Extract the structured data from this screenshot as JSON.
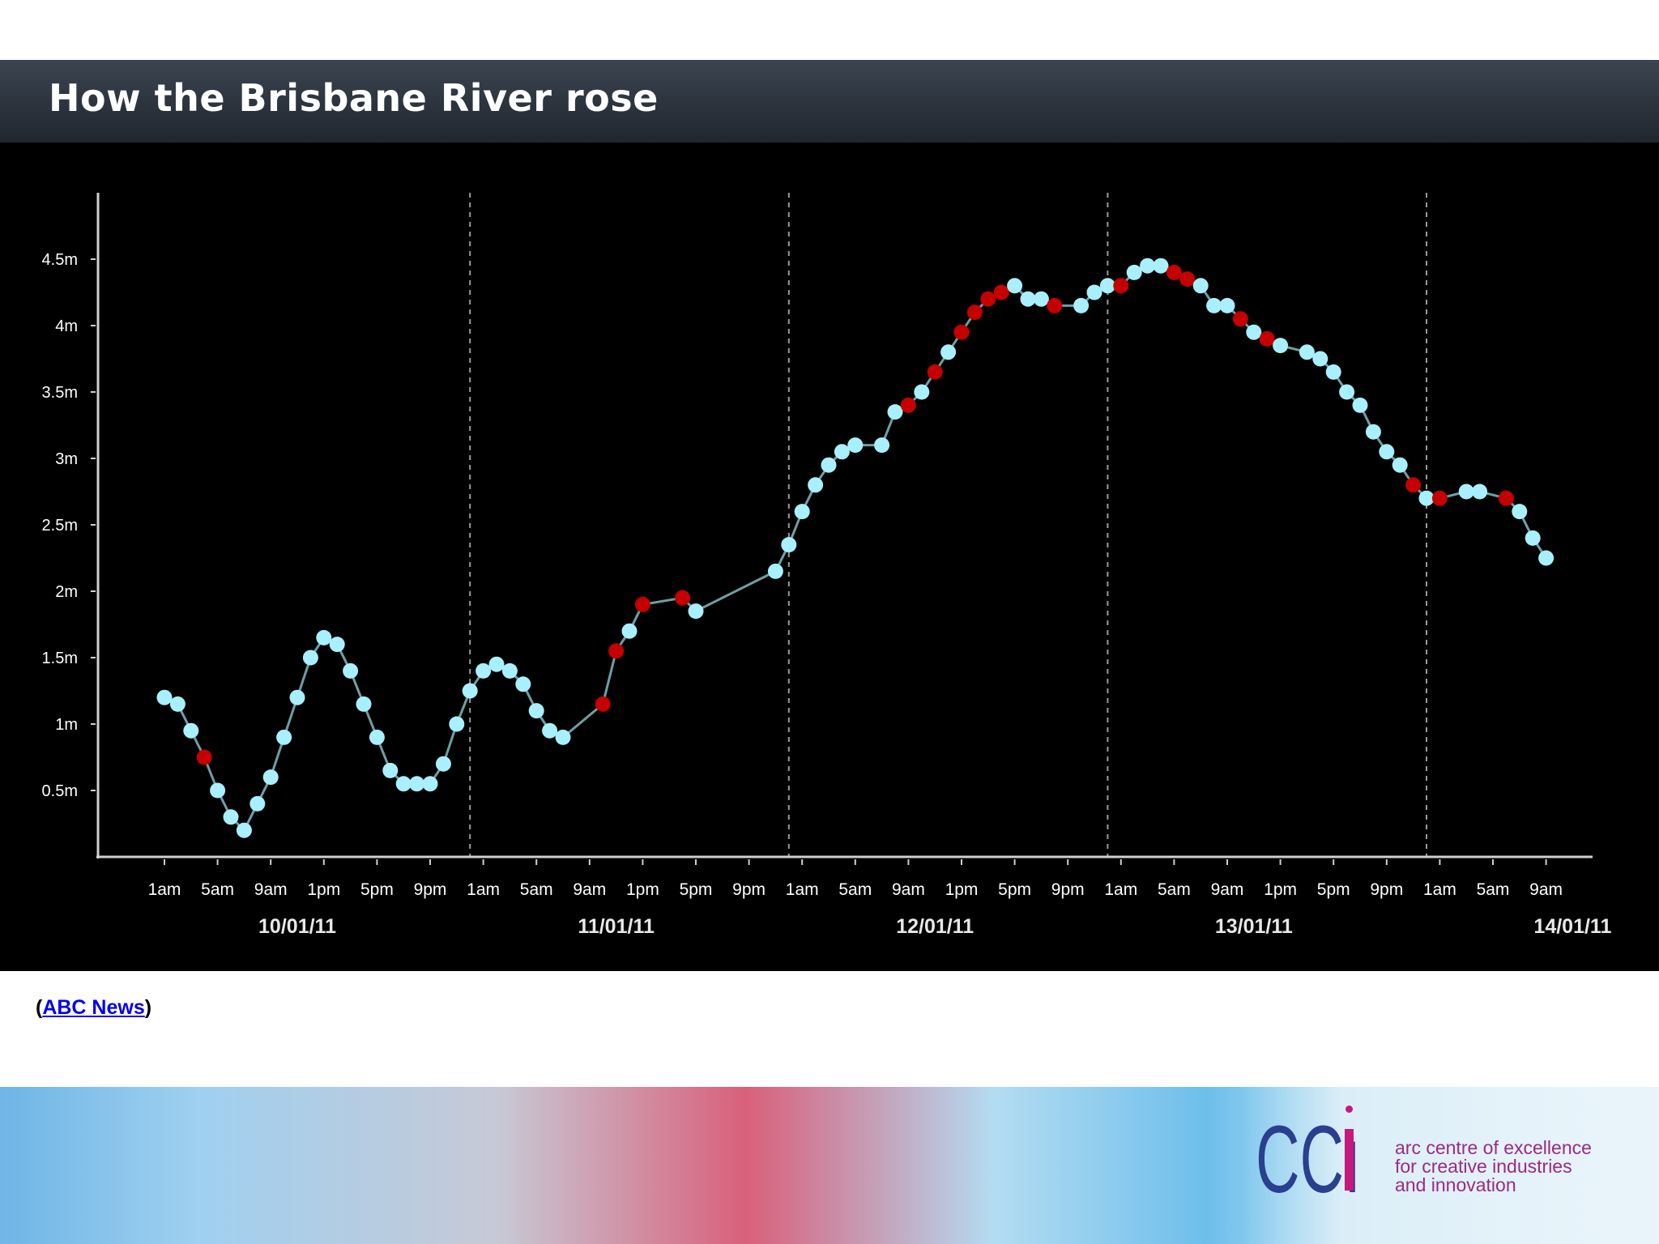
{
  "header": {
    "title": "How the Brisbane River rose"
  },
  "credit": {
    "open": "(",
    "link_text": "ABC News",
    "close": ")"
  },
  "branding": {
    "logo_text": "CCi",
    "tagline": [
      "arc centre of excellence",
      "for creative industries",
      "and innovation"
    ],
    "logo_color": "#2a3f8f",
    "accent_color": "#c8187d",
    "tagline_color": "#9b2a86"
  },
  "chart_data": {
    "type": "line",
    "title": "",
    "xlabel": "",
    "ylabel": "",
    "ylim": [
      0,
      5
    ],
    "xlim": [
      -2.5,
      105
    ],
    "y_ticks": [
      0.5,
      1,
      1.5,
      2,
      2.5,
      3,
      3.5,
      4,
      4.5
    ],
    "y_tick_labels": [
      "0.5m",
      "1m",
      "1.5m",
      "2m",
      "2.5m",
      "3m",
      "3.5m",
      "4m",
      "4.5m"
    ],
    "x_tick_hours": [
      0,
      4,
      8,
      12,
      16,
      20,
      24,
      28,
      32,
      36,
      40,
      44,
      48,
      52,
      56,
      60,
      64,
      68,
      72,
      76,
      80,
      84,
      88,
      92,
      96,
      100,
      104
    ],
    "x_tick_labels": [
      "1am",
      "5am",
      "9am",
      "1pm",
      "5pm",
      "9pm",
      "1am",
      "5am",
      "9am",
      "1pm",
      "5pm",
      "9pm",
      "1am",
      "5am",
      "9am",
      "1pm",
      "5pm",
      "9pm",
      "1am",
      "5am",
      "9am",
      "1pm",
      "5pm",
      "9pm",
      "1am",
      "5am",
      "9am"
    ],
    "dates": [
      {
        "label": "10/01/11",
        "hour": 10
      },
      {
        "label": "11/01/11",
        "hour": 34
      },
      {
        "label": "12/01/11",
        "hour": 58
      },
      {
        "label": "13/01/11",
        "hour": 82
      },
      {
        "label": "14/01/11",
        "hour": 106
      }
    ],
    "day_boundaries": [
      23,
      47,
      71,
      95
    ],
    "series": [
      {
        "points": [
          [
            0,
            1.2,
            0
          ],
          [
            1,
            1.15,
            0
          ],
          [
            2,
            0.95,
            0
          ],
          [
            3,
            0.75,
            1
          ],
          [
            4,
            0.5,
            0
          ],
          [
            5,
            0.3,
            0
          ],
          [
            6,
            0.2,
            0
          ],
          [
            7,
            0.4,
            0
          ],
          [
            8,
            0.6,
            0
          ],
          [
            9,
            0.9,
            0
          ],
          [
            10,
            1.2,
            0
          ],
          [
            11,
            1.5,
            0
          ],
          [
            12,
            1.65,
            0
          ],
          [
            13,
            1.6,
            0
          ],
          [
            14,
            1.4,
            0
          ],
          [
            15,
            1.15,
            0
          ],
          [
            16,
            0.9,
            0
          ],
          [
            17,
            0.65,
            0
          ],
          [
            18,
            0.55,
            0
          ],
          [
            19,
            0.55,
            0
          ],
          [
            20,
            0.55,
            0
          ],
          [
            21,
            0.7,
            0
          ],
          [
            22,
            1.0,
            0
          ],
          [
            23,
            1.25,
            0
          ],
          [
            24,
            1.4,
            0
          ],
          [
            25,
            1.45,
            0
          ],
          [
            26,
            1.4,
            0
          ],
          [
            27,
            1.3,
            0
          ],
          [
            28,
            1.1,
            0
          ],
          [
            29,
            0.95,
            0
          ],
          [
            30,
            0.9,
            0
          ],
          [
            33,
            1.15,
            1
          ],
          [
            34,
            1.55,
            1
          ],
          [
            35,
            1.7,
            0
          ],
          [
            36,
            1.9,
            1
          ],
          [
            39,
            1.95,
            1
          ],
          [
            40,
            1.85,
            0
          ],
          [
            46,
            2.15,
            0
          ],
          [
            47,
            2.35,
            0
          ],
          [
            48,
            2.6,
            0
          ],
          [
            49,
            2.8,
            0
          ],
          [
            50,
            2.95,
            0
          ],
          [
            51,
            3.05,
            0
          ],
          [
            52,
            3.1,
            0
          ],
          [
            54,
            3.1,
            0
          ],
          [
            55,
            3.35,
            0
          ],
          [
            56,
            3.4,
            1
          ],
          [
            57,
            3.5,
            0
          ],
          [
            58,
            3.65,
            1
          ],
          [
            59,
            3.8,
            0
          ],
          [
            60,
            3.95,
            1
          ],
          [
            61,
            4.1,
            1
          ],
          [
            62,
            4.2,
            1
          ],
          [
            63,
            4.25,
            1
          ],
          [
            64,
            4.3,
            0
          ],
          [
            65,
            4.2,
            0
          ],
          [
            66,
            4.2,
            0
          ],
          [
            67,
            4.15,
            1
          ],
          [
            69,
            4.15,
            0
          ],
          [
            70,
            4.25,
            0
          ],
          [
            71,
            4.3,
            0
          ],
          [
            72,
            4.3,
            1
          ],
          [
            73,
            4.4,
            0
          ],
          [
            74,
            4.45,
            0
          ],
          [
            75,
            4.45,
            0
          ],
          [
            76,
            4.4,
            1
          ],
          [
            77,
            4.35,
            1
          ],
          [
            78,
            4.3,
            0
          ],
          [
            79,
            4.15,
            0
          ],
          [
            80,
            4.15,
            0
          ],
          [
            81,
            4.05,
            1
          ],
          [
            82,
            3.95,
            0
          ],
          [
            83,
            3.9,
            1
          ],
          [
            84,
            3.85,
            0
          ],
          [
            86,
            3.8,
            0
          ],
          [
            87,
            3.75,
            0
          ],
          [
            88,
            3.65,
            0
          ],
          [
            89,
            3.5,
            0
          ],
          [
            90,
            3.4,
            0
          ],
          [
            91,
            3.2,
            0
          ],
          [
            92,
            3.05,
            0
          ],
          [
            93,
            2.95,
            0
          ],
          [
            94,
            2.8,
            1
          ],
          [
            95,
            2.7,
            0
          ],
          [
            96,
            2.7,
            1
          ],
          [
            98,
            2.75,
            0
          ],
          [
            99,
            2.75,
            0
          ],
          [
            101,
            2.7,
            1
          ],
          [
            102,
            2.6,
            0
          ],
          [
            103,
            2.4,
            0
          ],
          [
            104,
            2.25,
            0
          ]
        ]
      }
    ],
    "point_format": "[hour, height_m, red_flag]",
    "colors": {
      "point": "#a8f0ff",
      "point_red": "#c40000",
      "line": "#6f9ea6",
      "axis": "#d0d0d0",
      "grid": "#9a9a9a",
      "background": "#000000"
    }
  }
}
